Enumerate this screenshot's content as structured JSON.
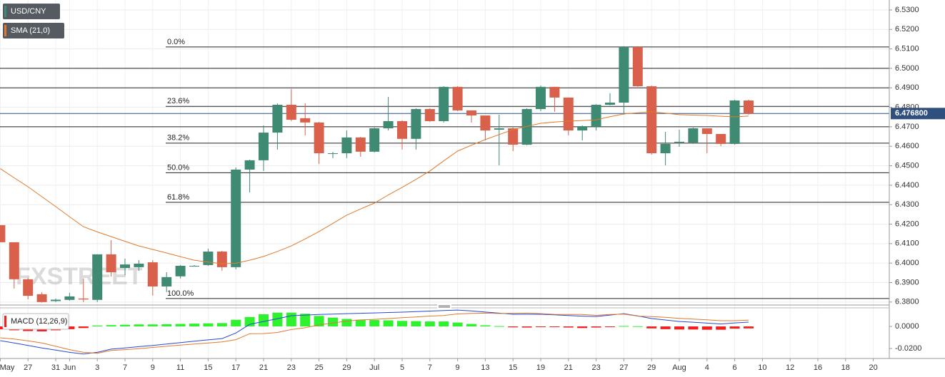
{
  "chart_data": [
    {
      "type": "candlestick",
      "name": "USD/CNY",
      "up_color": "#3f8a72",
      "down_color": "#d9614b",
      "categories": [
        "May",
        null,
        "27",
        null,
        "31",
        "Jun",
        null,
        "3",
        null,
        "7",
        null,
        "9",
        null,
        "11",
        null,
        "15",
        null,
        "17",
        null,
        "21",
        null,
        "23",
        null,
        "25",
        null,
        "29",
        null,
        "Jul",
        null,
        "5",
        null,
        "7",
        null,
        "9",
        null,
        "13",
        null,
        "15",
        null,
        "19",
        null,
        "21",
        null,
        "23",
        null,
        "27",
        null,
        "29",
        null,
        "Aug",
        null,
        "4",
        null,
        "6",
        null,
        "10",
        null,
        "12",
        null,
        "16",
        null,
        "18",
        null,
        "20"
      ],
      "open": [
        6.4195,
        6.4107,
        6.3917,
        6.384,
        6.3805,
        6.3811,
        6.3818,
        6.3811,
        6.4045,
        6.3975,
        6.3979,
        6.4004,
        6.388,
        6.3932,
        6.3986,
        6.399,
        6.4059,
        6.3979,
        6.448,
        6.4528,
        6.467,
        6.4813,
        6.4744,
        6.4722,
        6.4564,
        6.4564,
        6.4645,
        6.4572,
        6.4692,
        6.4729,
        6.4638,
        6.4791,
        6.4729,
        6.4905,
        6.4784,
        6.4758,
        6.4685,
        6.4692,
        6.4608,
        6.4791,
        6.4905,
        6.485,
        6.4681,
        6.47,
        6.4813,
        6.4824,
        6.511,
        6.4908,
        6.4564,
        6.4619,
        6.4619,
        6.4692,
        6.4663,
        6.4612,
        6.4835,
        null,
        null,
        null,
        null,
        null,
        null,
        null,
        null,
        null
      ],
      "high": [
        6.4195,
        6.4107,
        6.3924,
        6.385,
        6.3818,
        6.3847,
        6.3921,
        6.4045,
        6.4118,
        6.4023,
        6.4015,
        6.4015,
        6.3953,
        6.399,
        6.399,
        6.4074,
        6.4063,
        6.4491,
        6.4531,
        6.4707,
        6.482,
        6.4894,
        6.482,
        6.4725,
        6.4571,
        6.4681,
        6.4648,
        6.4696,
        6.4853,
        6.4733,
        6.4795,
        6.4795,
        6.4908,
        6.4908,
        6.4784,
        6.4758,
        6.4762,
        6.4696,
        6.4795,
        6.4912,
        6.4905,
        6.485,
        6.4707,
        6.4816,
        6.4872,
        6.5114,
        6.5114,
        6.4912,
        6.4674,
        6.4685,
        6.4696,
        6.4692,
        6.4663,
        6.4839,
        6.4839,
        null,
        null,
        null,
        null,
        null,
        null,
        null,
        null,
        null
      ],
      "low": [
        6.4107,
        6.3869,
        6.3814,
        6.3797,
        6.38,
        6.3807,
        6.38,
        6.38,
        6.3931,
        6.3938,
        6.396,
        6.3833,
        6.3851,
        6.3921,
        6.3983,
        6.3986,
        6.3961,
        6.3968,
        6.4363,
        6.4473,
        6.4583,
        6.4729,
        6.4656,
        6.4509,
        6.4539,
        6.4539,
        6.4546,
        6.4568,
        6.4681,
        6.4583,
        6.4583,
        6.4725,
        6.4722,
        6.478,
        6.4722,
        6.463,
        6.4502,
        6.4575,
        6.4605,
        6.478,
        6.4777,
        6.4656,
        6.463,
        6.4681,
        6.481,
        6.4762,
        6.4905,
        6.4557,
        6.4502,
        6.4597,
        6.4612,
        6.4564,
        6.4601,
        6.4608,
        6.4762,
        null,
        null,
        null,
        null,
        null,
        null,
        null,
        null,
        null
      ],
      "close": [
        6.4107,
        6.3917,
        6.3832,
        6.38,
        6.3812,
        6.3829,
        6.3813,
        6.4045,
        6.3953,
        6.3993,
        6.3997,
        6.388,
        6.3928,
        6.3986,
        6.3986,
        6.4059,
        6.3979,
        6.448,
        6.4528,
        6.467,
        6.4813,
        6.4736,
        6.4722,
        6.4564,
        6.4564,
        6.4645,
        6.4572,
        6.4692,
        6.4729,
        6.4638,
        6.4791,
        6.4729,
        6.4905,
        6.4784,
        6.4758,
        6.4681,
        6.4692,
        6.4608,
        6.4791,
        6.4905,
        6.485,
        6.4681,
        6.4703,
        6.4813,
        6.4824,
        6.511,
        6.4908,
        6.4564,
        6.4612,
        6.4623,
        6.4692,
        6.4663,
        6.4612,
        6.4835,
        6.4768,
        null,
        null,
        null,
        null,
        null,
        null,
        null,
        null,
        null
      ],
      "sma": {
        "name": "SMA (21,0)",
        "color": "#e07a2c",
        "values": [
          6.4485,
          6.4438,
          6.4392,
          6.4341,
          6.429,
          6.4238,
          6.4187,
          6.416,
          6.4136,
          6.4112,
          6.4088,
          6.407,
          6.4052,
          6.4033,
          6.4015,
          6.4005,
          6.3997,
          6.3999,
          6.4015,
          6.4034,
          6.406,
          6.4088,
          6.4124,
          6.4162,
          6.4204,
          6.4246,
          6.4278,
          6.4308,
          6.435,
          6.4389,
          6.443,
          6.4473,
          6.4525,
          6.4575,
          6.4605,
          6.4634,
          6.466,
          6.4685,
          6.4702,
          6.4718,
          6.4724,
          6.4729,
          6.4732,
          6.4736,
          6.4752,
          6.4766,
          6.4772,
          6.4777,
          6.477,
          6.4762,
          6.476,
          6.4758,
          6.4754,
          6.4751,
          6.4755,
          null,
          null,
          null,
          null,
          null,
          null,
          null,
          null,
          null
        ]
      },
      "levels": [
        6.5,
        6.49,
        6.47
      ],
      "fibonacci": [
        {
          "label": "0.0%",
          "value": 6.511
        },
        {
          "label": "23.6%",
          "value": 6.4805
        },
        {
          "label": "38.2%",
          "value": 6.4616
        },
        {
          "label": "50.0%",
          "value": 6.4464
        },
        {
          "label": "61.8%",
          "value": 6.4312
        },
        {
          "label": "100.0%",
          "value": 6.3818
        }
      ],
      "last_price": {
        "value": 6.4768,
        "label": "6.476800",
        "color": "#2f4f7f"
      },
      "watermark": "FXSTREET",
      "ylim": [
        6.3792,
        6.5351
      ],
      "yticks": [
        {
          "value": 6.53,
          "label": "6.5300"
        },
        {
          "value": 6.52,
          "label": "6.5200"
        },
        {
          "value": 6.51,
          "label": "6.5100"
        },
        {
          "value": 6.5,
          "label": "6.5000"
        },
        {
          "value": 6.49,
          "label": "6.4900"
        },
        {
          "value": 6.48,
          "label": "6.4800"
        },
        {
          "value": 6.47,
          "label": "6.4700"
        },
        {
          "value": 6.46,
          "label": "6.4600"
        },
        {
          "value": 6.45,
          "label": "6.4500"
        },
        {
          "value": 6.44,
          "label": "6.4400"
        },
        {
          "value": 6.43,
          "label": "6.4300"
        },
        {
          "value": 6.42,
          "label": "6.4200"
        },
        {
          "value": 6.41,
          "label": "6.4100"
        },
        {
          "value": 6.4,
          "label": "6.4000"
        },
        {
          "value": 6.39,
          "label": "6.3900"
        },
        {
          "value": 6.38,
          "label": "6.3800"
        }
      ],
      "grid": true
    },
    {
      "type": "macd",
      "name": "MACD (12,26,9)",
      "histogram": {
        "up_color": "#2ef22e",
        "down_color": "#f21f1f",
        "values": [
          -0.0026,
          -0.0035,
          -0.0042,
          -0.0045,
          -0.0035,
          -0.0025,
          -0.0015,
          0.0008,
          0.0012,
          0.0015,
          0.0018,
          0.0018,
          0.002,
          0.0022,
          0.0025,
          0.0028,
          0.003,
          0.006,
          0.0085,
          0.011,
          0.0125,
          0.0125,
          0.0115,
          0.0095,
          0.008,
          0.0068,
          0.006,
          0.0058,
          0.0055,
          0.005,
          0.0048,
          0.0045,
          0.0045,
          0.0035,
          0.0022,
          0.001,
          0.0003,
          -0.0008,
          -0.001,
          -0.0006,
          -0.0004,
          -0.001,
          -0.0015,
          -0.001,
          -0.0005,
          0.0004,
          0.0002,
          -0.0018,
          -0.0025,
          -0.0028,
          -0.0028,
          -0.003,
          -0.003,
          -0.002,
          -0.0018
        ]
      },
      "series": [
        {
          "color": "#2747d8",
          "values": [
            -0.0129,
            -0.015,
            -0.0172,
            -0.0195,
            -0.0215,
            -0.0235,
            -0.025,
            -0.0235,
            -0.0206,
            -0.0195,
            -0.0183,
            -0.0172,
            -0.016,
            -0.0147,
            -0.0134,
            -0.0122,
            -0.011,
            -0.006,
            0.0019,
            0.0045,
            0.007,
            0.0097,
            0.0103,
            0.0108,
            0.0112,
            0.0116,
            0.0119,
            0.0122,
            0.0126,
            0.0129,
            0.0134,
            0.0139,
            0.0144,
            0.0148,
            0.014,
            0.013,
            0.012,
            0.011,
            0.011,
            0.011,
            0.0105,
            0.0098,
            0.0093,
            0.009,
            0.0103,
            0.0116,
            0.0095,
            0.0071,
            0.0058,
            0.0045,
            0.0038,
            0.003,
            0.0022,
            0.0032,
            0.0039
          ]
        },
        {
          "color": "#e07a2c",
          "values": [
            -0.0103,
            -0.0115,
            -0.013,
            -0.015,
            -0.018,
            -0.021,
            -0.0235,
            -0.0243,
            -0.0218,
            -0.021,
            -0.0201,
            -0.019,
            -0.018,
            -0.0169,
            -0.0159,
            -0.015,
            -0.014,
            -0.012,
            -0.0066,
            -0.0065,
            -0.0055,
            -0.0028,
            -0.0012,
            0.0013,
            0.0032,
            0.0048,
            0.0059,
            0.0064,
            0.0071,
            0.0079,
            0.0086,
            0.0094,
            0.0099,
            0.0113,
            0.0118,
            0.012,
            0.0117,
            0.0118,
            0.012,
            0.0116,
            0.0109,
            0.0108,
            0.0108,
            0.01,
            0.0108,
            0.0112,
            0.0093,
            0.0089,
            0.0083,
            0.0073,
            0.0066,
            0.006,
            0.0052,
            0.0052,
            0.0057
          ]
        }
      ],
      "ylim": [
        -0.0271,
        0.0168
      ],
      "yticks": [
        {
          "value": 0,
          "label": "0.0000"
        },
        {
          "value": -0.02,
          "label": "-0.0200"
        }
      ]
    }
  ]
}
